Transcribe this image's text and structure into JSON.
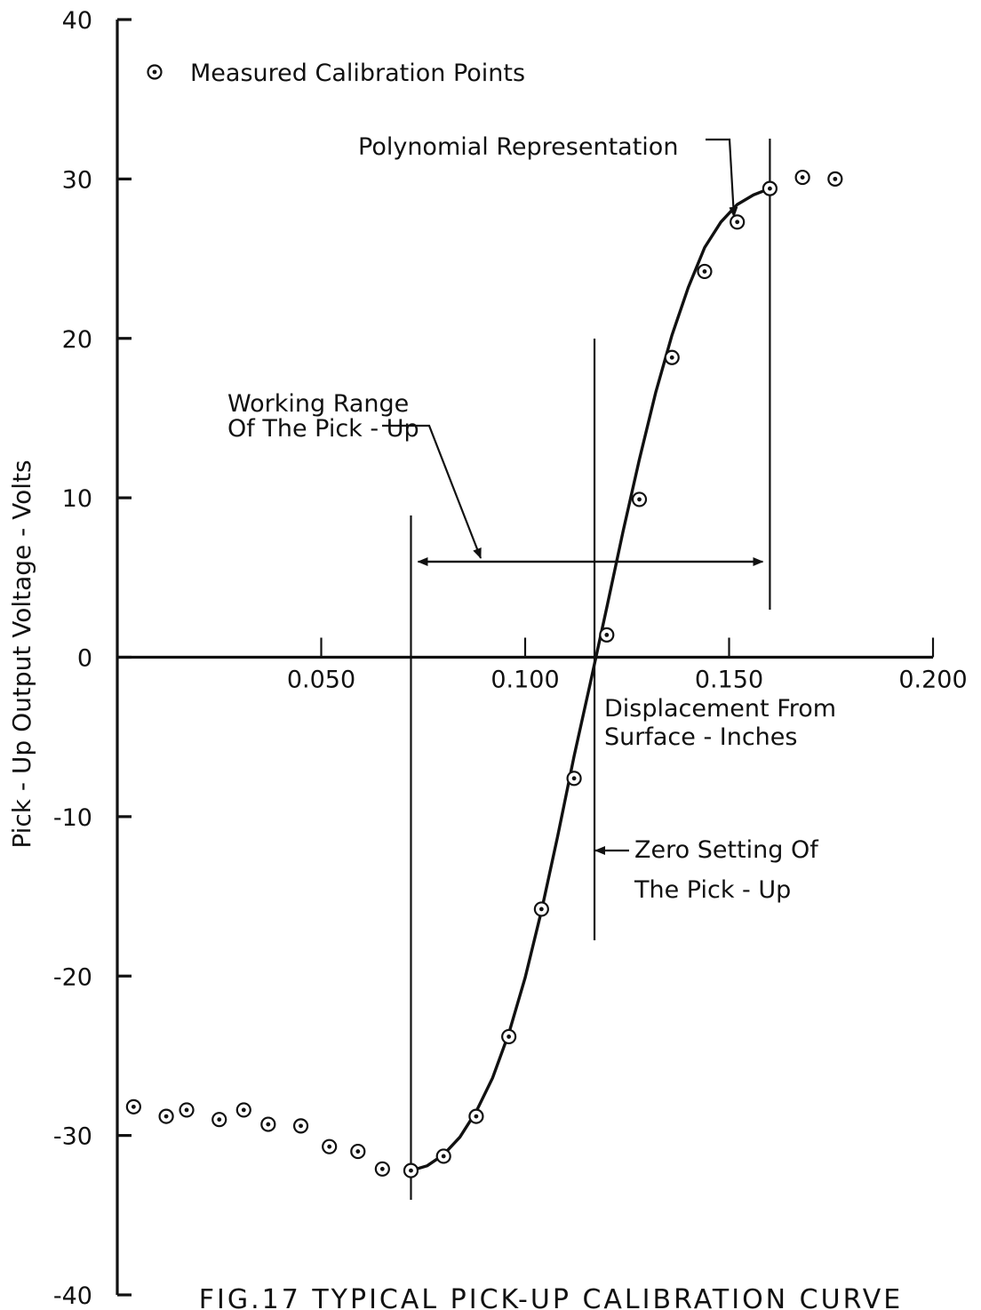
{
  "chart_data": {
    "type": "scatter",
    "title": "",
    "caption": "FIG.17 TYPICAL PICK-UP CALIBRATION CURVE",
    "xlabel_lines": [
      "Displacement From",
      "Surface - Inches"
    ],
    "ylabel": "Pick - Up Output Voltage - Volts",
    "xlim": [
      0,
      0.2
    ],
    "ylim": [
      -40,
      40
    ],
    "x_ticks": [
      0.05,
      0.1,
      0.15,
      0.2
    ],
    "x_tick_labels": [
      "0.050",
      "0.100",
      "0.150",
      "0.200"
    ],
    "y_ticks": [
      40,
      30,
      20,
      10,
      0,
      -10,
      -20,
      -30,
      -40
    ],
    "y_tick_labels": [
      "40",
      "30",
      "20",
      "10",
      "0",
      "-10",
      "-20",
      "-30",
      "-40"
    ],
    "legend": {
      "placement": "top-left",
      "label": "Measured Calibration Points"
    },
    "series": [
      {
        "kind": "points",
        "x": [
          0.004,
          0.012,
          0.017,
          0.025,
          0.031,
          0.037,
          0.045,
          0.052,
          0.059,
          0.065,
          0.072,
          0.08,
          0.088,
          0.096,
          0.104,
          0.112,
          0.12,
          0.128,
          0.136,
          0.144,
          0.152,
          0.16,
          0.168,
          0.176
        ],
        "y": [
          -28.2,
          -28.8,
          -28.4,
          -29.0,
          -28.4,
          -29.3,
          -29.4,
          -30.7,
          -31.0,
          -32.1,
          -32.2,
          -31.3,
          -28.8,
          -23.8,
          -15.8,
          -7.6,
          1.4,
          9.9,
          18.8,
          24.2,
          27.3,
          29.4,
          30.1,
          30.0
        ]
      },
      {
        "kind": "curve",
        "name": "Polynomial Representation",
        "x": [
          0.072,
          0.076,
          0.08,
          0.084,
          0.088,
          0.092,
          0.096,
          0.1,
          0.104,
          0.108,
          0.112,
          0.116,
          0.12,
          0.124,
          0.128,
          0.132,
          0.136,
          0.14,
          0.144,
          0.148,
          0.152,
          0.156,
          0.16
        ],
        "y": [
          -32.2,
          -31.9,
          -31.2,
          -30.1,
          -28.5,
          -26.4,
          -23.6,
          -20.1,
          -15.9,
          -11.2,
          -6.2,
          -1.6,
          3.1,
          7.9,
          12.4,
          16.6,
          20.2,
          23.2,
          25.7,
          27.3,
          28.4,
          29.0,
          29.4
        ]
      }
    ],
    "annotations": [
      {
        "id": "polynomial",
        "text": "Polynomial Representation"
      },
      {
        "id": "working-range",
        "lines": [
          "Working Range",
          "Of The Pick - Up"
        ],
        "range_x": [
          0.072,
          0.16
        ]
      },
      {
        "id": "zero-setting",
        "lines": [
          "Zero Setting Of",
          "The Pick - Up"
        ],
        "x": 0.117
      }
    ],
    "grid": false
  }
}
